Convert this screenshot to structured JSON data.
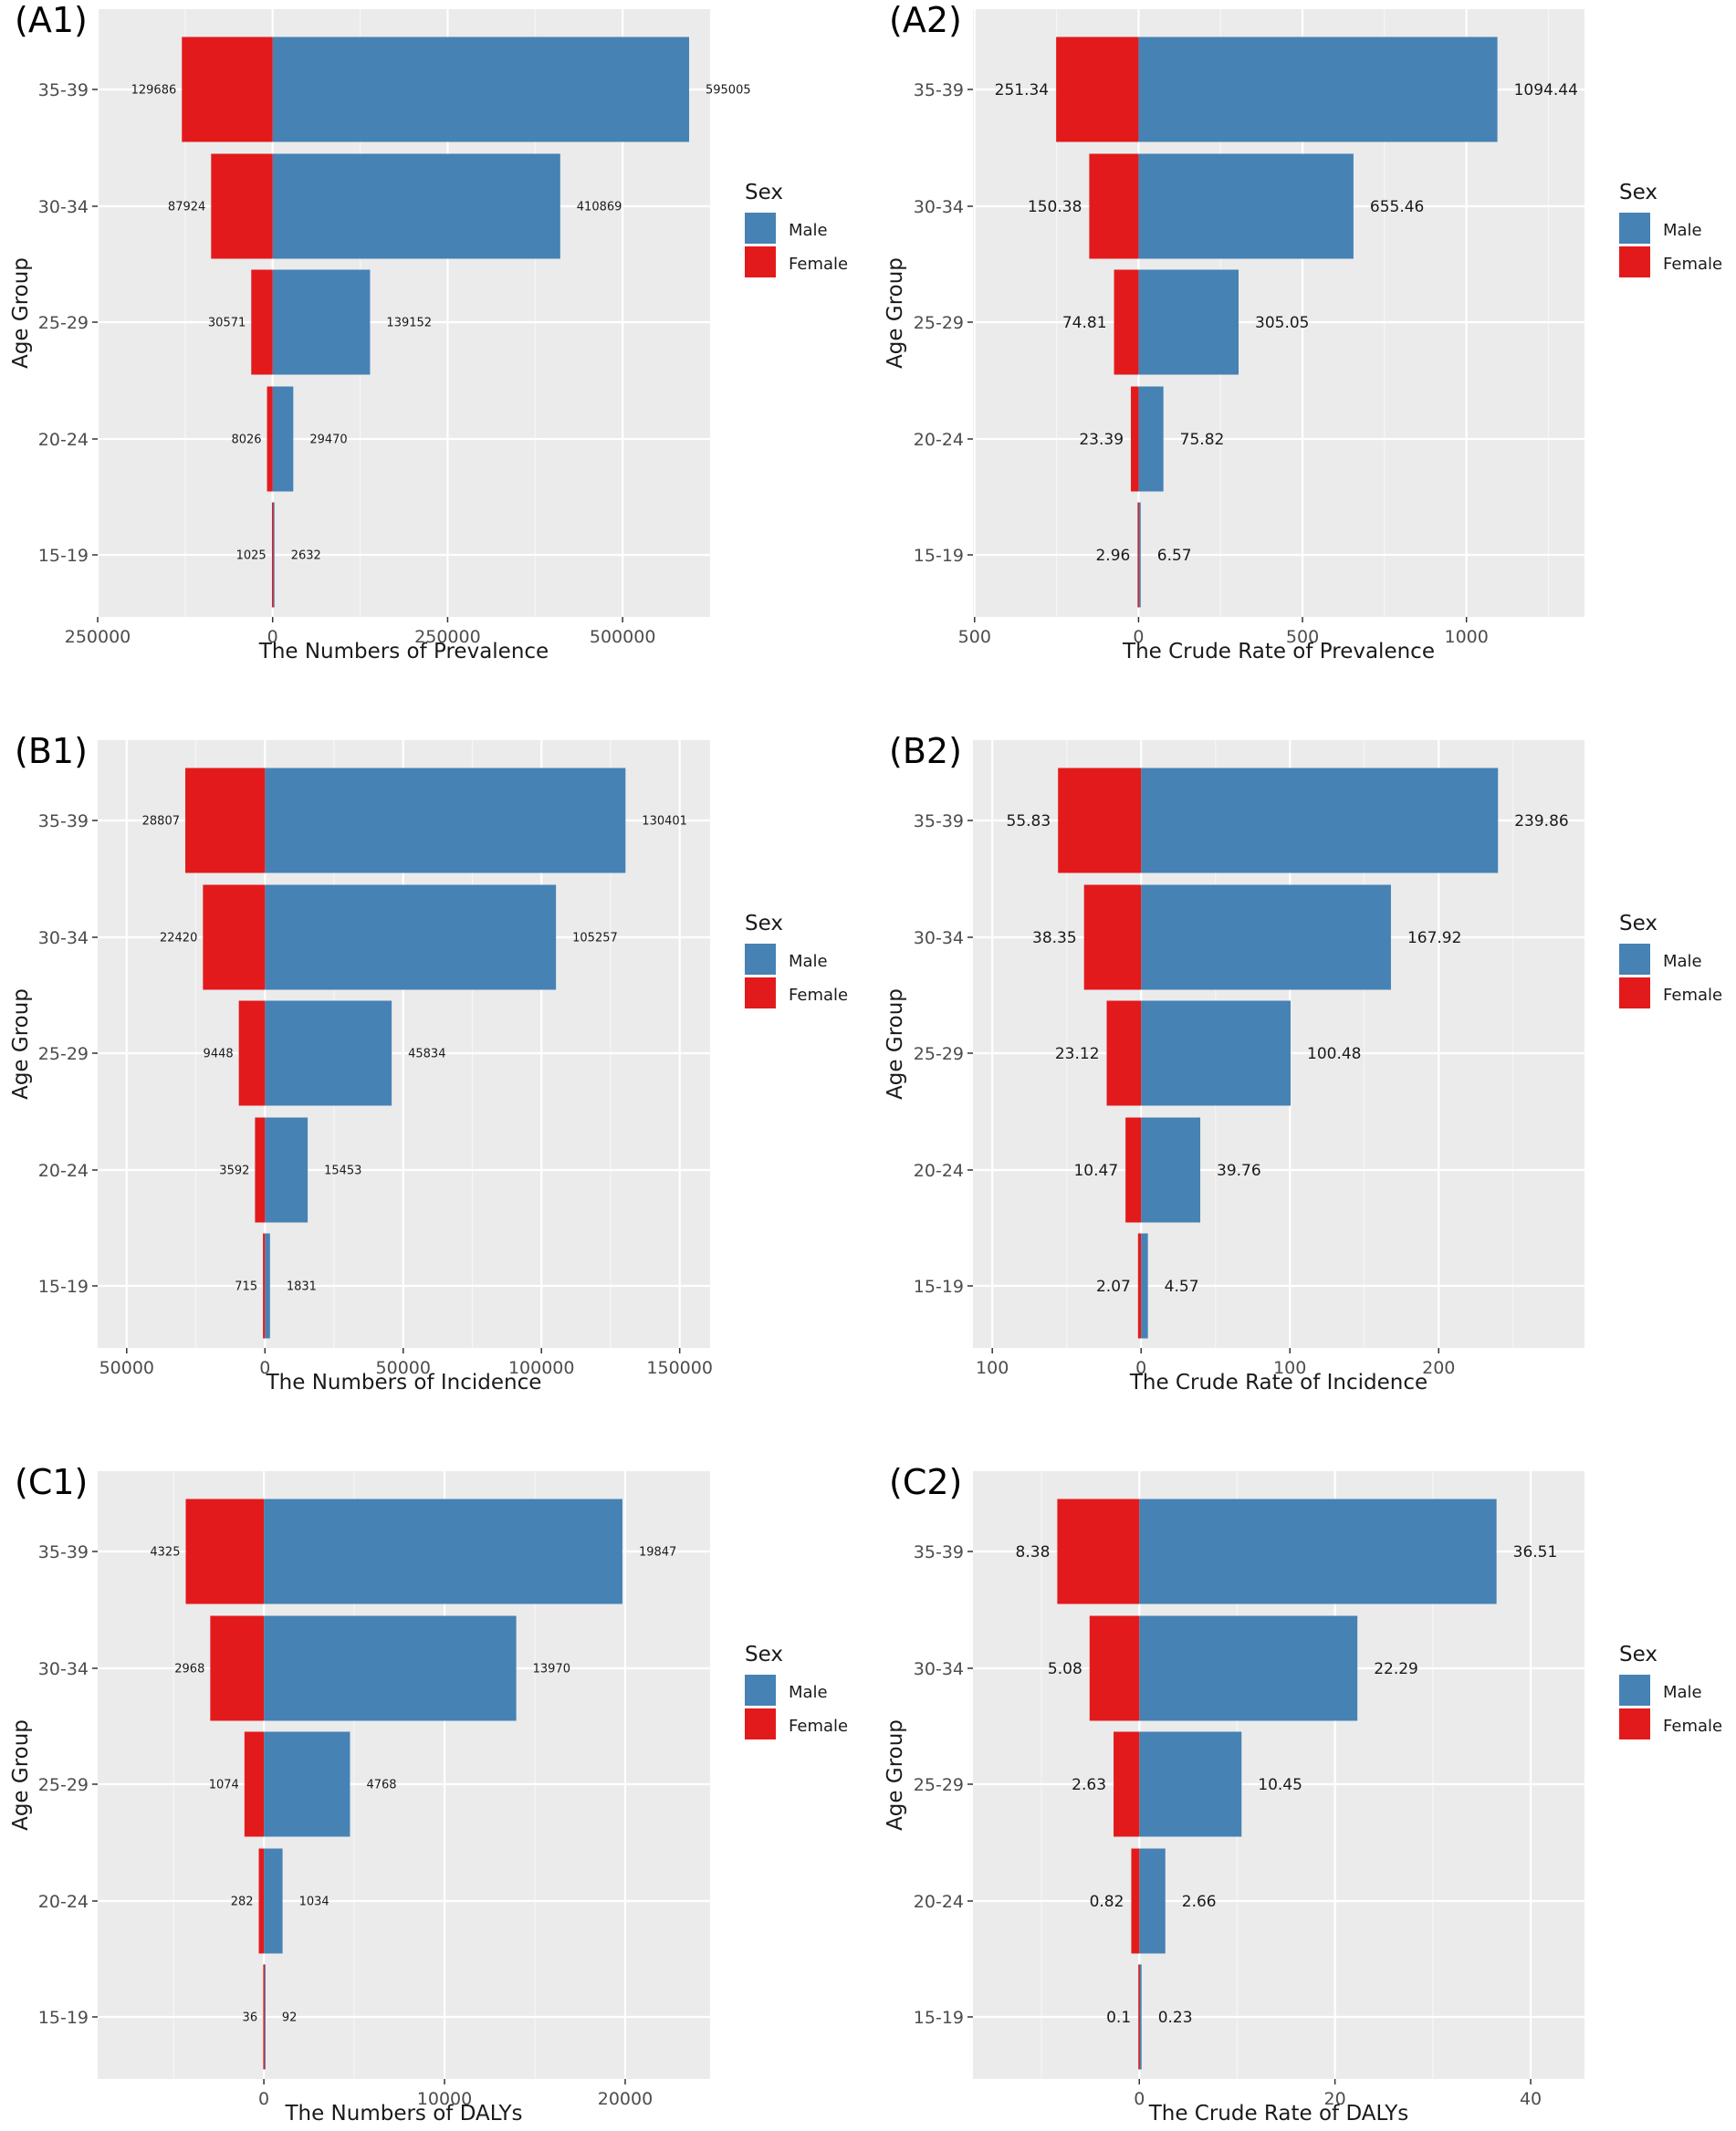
{
  "legend": {
    "title": "Sex",
    "male_label": "Male",
    "female_label": "Female",
    "male_color": "#4682B4",
    "female_color": "#E31A1C"
  },
  "y_axis_label": "Age Group",
  "chart_data": [
    {
      "type": "bar",
      "panel": "(A1)",
      "orientation": "horizontal",
      "categories": [
        "35-39",
        "30-34",
        "25-29",
        "20-24",
        "15-19"
      ],
      "series": [
        {
          "name": "Male",
          "values": [
            595005,
            410869,
            139152,
            29470,
            2632
          ],
          "labels": [
            "595005",
            "410869",
            "139152",
            "29470",
            "2632"
          ]
        },
        {
          "name": "Female",
          "values": [
            129686,
            87924,
            30571,
            8026,
            1025
          ],
          "labels": [
            "129686",
            "87924",
            "30571",
            "8026",
            "1025"
          ]
        }
      ],
      "xlabel": "The Numbers of Prevalence",
      "ylabel": "Age Group",
      "xlim": [
        -250000,
        625000
      ],
      "ticks": [
        -250000,
        0,
        250000,
        500000
      ],
      "tick_labels": [
        "250000",
        "0",
        "250000",
        "500000"
      ],
      "label_size": "small",
      "legend_position": "right"
    },
    {
      "type": "bar",
      "panel": "(A2)",
      "orientation": "horizontal",
      "categories": [
        "35-39",
        "30-34",
        "25-29",
        "20-24",
        "15-19"
      ],
      "series": [
        {
          "name": "Male",
          "values": [
            1094.44,
            655.46,
            305.05,
            75.82,
            6.57
          ],
          "labels": [
            "1094.44",
            "655.46",
            "305.05",
            "75.82",
            "6.57"
          ]
        },
        {
          "name": "Female",
          "values": [
            251.34,
            150.38,
            74.81,
            23.39,
            2.96
          ],
          "labels": [
            "251.34",
            "150.38",
            "74.81",
            "23.39",
            "2.96"
          ]
        }
      ],
      "xlabel": "The Crude Rate of Prevalence",
      "ylabel": "Age Group",
      "xlim": [
        -505,
        1360
      ],
      "ticks": [
        -500,
        0,
        500,
        1000
      ],
      "tick_labels": [
        "500",
        "0",
        "500",
        "1000"
      ],
      "label_size": "large",
      "legend_position": "right"
    },
    {
      "type": "bar",
      "panel": "(B1)",
      "orientation": "horizontal",
      "categories": [
        "35-39",
        "30-34",
        "25-29",
        "20-24",
        "15-19"
      ],
      "series": [
        {
          "name": "Male",
          "values": [
            130401,
            105257,
            45834,
            15453,
            1831
          ],
          "labels": [
            "130401",
            "105257",
            "45834",
            "15453",
            "1831"
          ]
        },
        {
          "name": "Female",
          "values": [
            28807,
            22420,
            9448,
            3592,
            715
          ],
          "labels": [
            "28807",
            "22420",
            "9448",
            "3592",
            "715"
          ]
        }
      ],
      "xlabel": "The Numbers of Incidence",
      "ylabel": "Age Group",
      "xlim": [
        -60500,
        161000
      ],
      "ticks": [
        -50000,
        0,
        50000,
        100000,
        150000
      ],
      "tick_labels": [
        "50000",
        "0",
        "50000",
        "100000",
        "150000"
      ],
      "label_size": "small",
      "legend_position": "right"
    },
    {
      "type": "bar",
      "panel": "(B2)",
      "orientation": "horizontal",
      "categories": [
        "35-39",
        "30-34",
        "25-29",
        "20-24",
        "15-19"
      ],
      "series": [
        {
          "name": "Male",
          "values": [
            239.86,
            167.92,
            100.48,
            39.76,
            4.57
          ],
          "labels": [
            "239.86",
            "167.92",
            "100.48",
            "39.76",
            "4.57"
          ]
        },
        {
          "name": "Female",
          "values": [
            55.83,
            38.35,
            23.12,
            10.47,
            2.07
          ],
          "labels": [
            "55.83",
            "38.35",
            "23.12",
            "10.47",
            "2.07"
          ]
        }
      ],
      "xlabel": "The Crude Rate of Incidence",
      "ylabel": "Age Group",
      "xlim": [
        -113,
        298
      ],
      "ticks": [
        -100,
        0,
        100,
        200
      ],
      "tick_labels": [
        "100",
        "0",
        "100",
        "200"
      ],
      "label_size": "large",
      "legend_position": "right"
    },
    {
      "type": "bar",
      "panel": "(C1)",
      "orientation": "horizontal",
      "categories": [
        "35-39",
        "30-34",
        "25-29",
        "20-24",
        "15-19"
      ],
      "series": [
        {
          "name": "Male",
          "values": [
            19847,
            13970,
            4768,
            1034,
            92
          ],
          "labels": [
            "19847",
            "13970",
            "4768",
            "1034",
            "92"
          ]
        },
        {
          "name": "Female",
          "values": [
            4325,
            2968,
            1074,
            282,
            36
          ],
          "labels": [
            "4325",
            "2968",
            "1074",
            "282",
            "36"
          ]
        }
      ],
      "xlabel": "The Numbers of DALYs",
      "ylabel": "Age Group",
      "xlim": [
        -9200,
        24700
      ],
      "ticks": [
        0,
        10000,
        20000
      ],
      "tick_labels": [
        "0",
        "10000",
        "20000"
      ],
      "label_size": "small",
      "legend_position": "right"
    },
    {
      "type": "bar",
      "panel": "(C2)",
      "orientation": "horizontal",
      "categories": [
        "35-39",
        "30-34",
        "25-29",
        "20-24",
        "15-19"
      ],
      "series": [
        {
          "name": "Male",
          "values": [
            36.51,
            22.29,
            10.45,
            2.66,
            0.23
          ],
          "labels": [
            "36.51",
            "22.29",
            "10.45",
            "2.66",
            "0.23"
          ]
        },
        {
          "name": "Female",
          "values": [
            8.38,
            5.08,
            2.63,
            0.82,
            0.1
          ],
          "labels": [
            "8.38",
            "5.08",
            "2.63",
            "0.82",
            "0.1"
          ]
        }
      ],
      "xlabel": "The Crude Rate of DALYs",
      "ylabel": "Age Group",
      "xlim": [
        -17,
        45.5
      ],
      "ticks": [
        0,
        20,
        40
      ],
      "tick_labels": [
        "0",
        "20",
        "40"
      ],
      "label_size": "large",
      "legend_position": "right"
    }
  ]
}
